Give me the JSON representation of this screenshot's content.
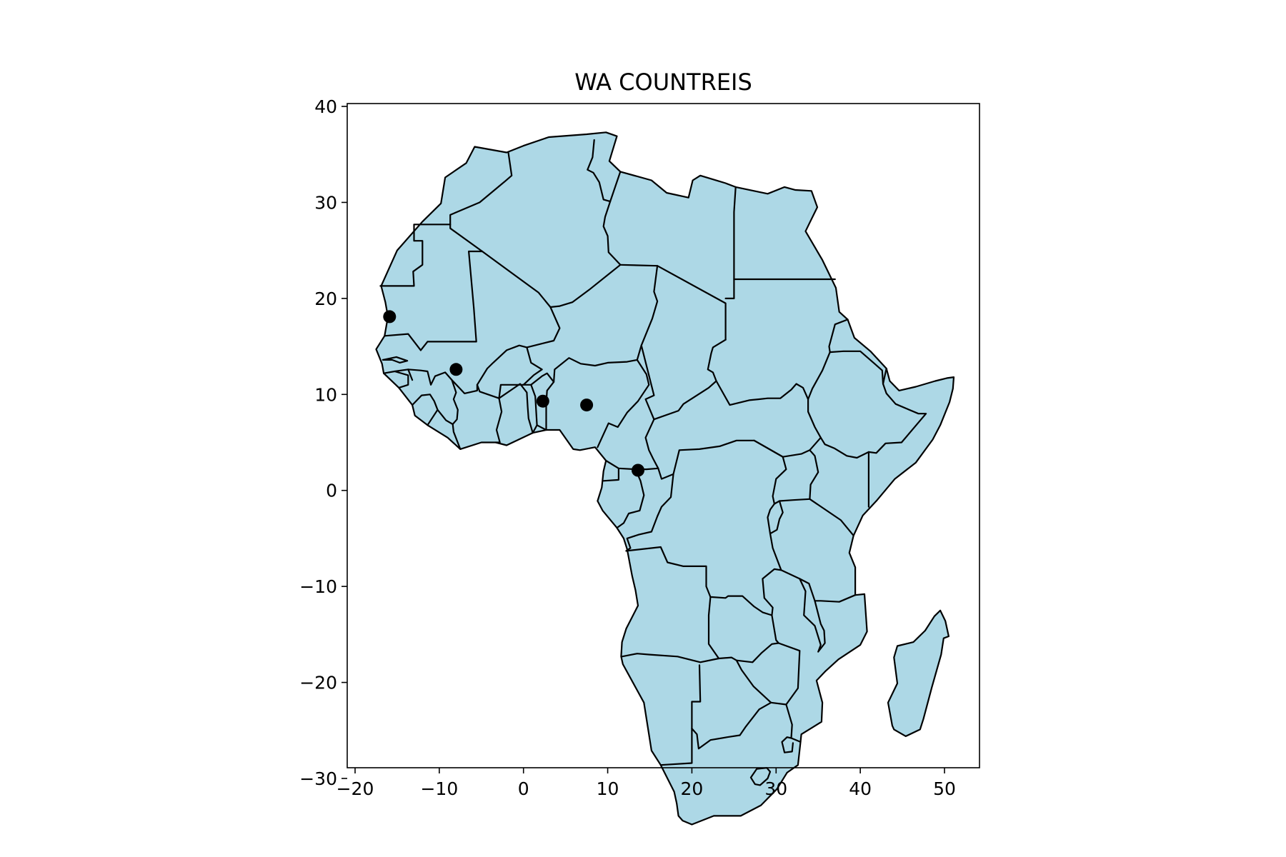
{
  "chart": {
    "title": "WA COUNTREIS"
  },
  "chart_data": {
    "type": "scatter",
    "title": "WA COUNTREIS",
    "xlabel": "",
    "ylabel": "",
    "xlim": [
      -21,
      55
    ],
    "ylim": [
      -38,
      41
    ],
    "x_ticks": [
      -20,
      -10,
      0,
      10,
      20,
      30,
      40,
      50
    ],
    "x_tick_labels": [
      "−20",
      "−10",
      "0",
      "10",
      "20",
      "30",
      "40",
      "50"
    ],
    "y_ticks": [
      40,
      30,
      20,
      10,
      0,
      -10,
      -20,
      -30
    ],
    "y_tick_labels": [
      "40",
      "30",
      "20",
      "10",
      "0",
      "−10",
      "−20",
      "−30"
    ],
    "grid": false,
    "colors": {
      "land": "#add8e6",
      "border": "#000000",
      "marker": "#000000"
    },
    "points": [
      {
        "x": -15.9,
        "y": 18.1
      },
      {
        "x": -8.0,
        "y": 12.6
      },
      {
        "x": 2.3,
        "y": 9.3
      },
      {
        "x": 7.5,
        "y": 8.9
      },
      {
        "x": 13.6,
        "y": 2.1
      }
    ]
  }
}
